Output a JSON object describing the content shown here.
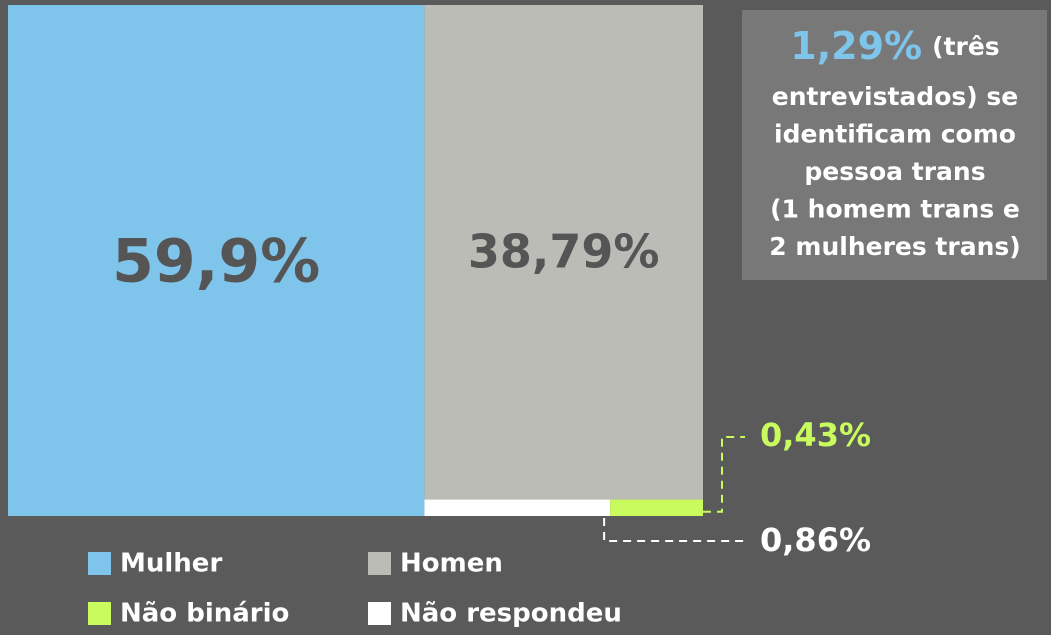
{
  "chart_data": {
    "type": "treemap",
    "categories": [
      "Mulher",
      "Homen",
      "Não binário",
      "Não respondeu"
    ],
    "values": [
      59.9,
      38.79,
      0.43,
      0.86
    ],
    "value_labels": [
      "59,9%",
      "38,79%",
      "0,43%",
      "0,86%"
    ],
    "colors": [
      "#7fc4ea",
      "#bcbcb7",
      "#c9fb5e",
      "#ffffff"
    ],
    "annotation": {
      "value": 1.29,
      "value_label": "1,29%",
      "lines": [
        "(três",
        "entrevistados) se",
        "identificam como",
        "pessoa trans",
        "(1 homem trans e",
        "2 mulheres trans)"
      ]
    }
  }
}
